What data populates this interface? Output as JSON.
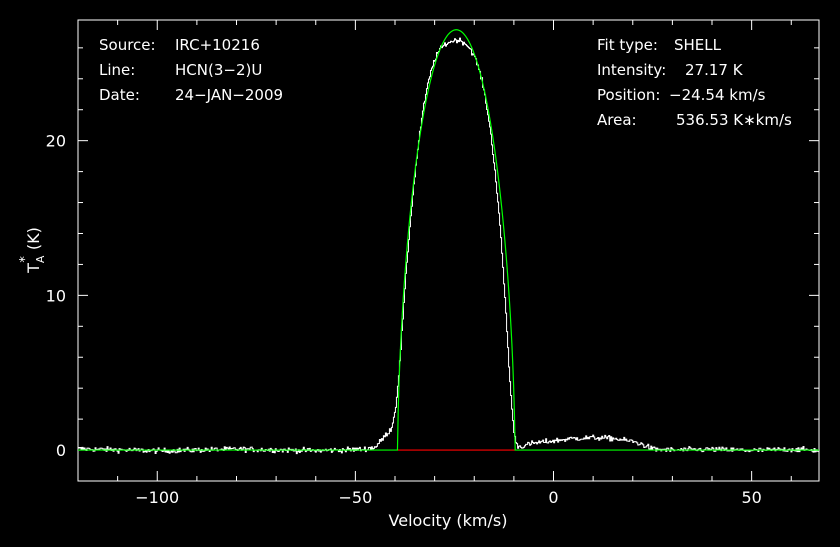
{
  "header_left": {
    "source_label": "Source:",
    "source_value": "IRC+10216",
    "line_label": "Line:",
    "line_value": "HCN(3−2)U",
    "date_label": "Date:",
    "date_value": "24−JAN−2009"
  },
  "header_right": {
    "fit_type_label": "Fit type:",
    "fit_type_value": "SHELL",
    "intensity_label": "Intensity:",
    "intensity_value": "27.17 K",
    "position_label": "Position:",
    "position_value": "−24.54 km/s",
    "area_label": "Area:",
    "area_value": "536.53 K∗km/s"
  },
  "colors": {
    "background": "#000000",
    "axes": "#ffffff",
    "spectrum": "#ffffff",
    "fit": "#00ff00",
    "baseline": "#ff0000"
  },
  "chart_data": {
    "type": "line",
    "xlabel": "Velocity (km/s)",
    "ylabel_main": "T",
    "ylabel_sub": "A",
    "ylabel_sup": "*",
    "ylabel_unit": "(K)",
    "xlim": [
      -120,
      67
    ],
    "ylim": [
      -2,
      27.8
    ],
    "x_ticks": [
      -100,
      -50,
      0,
      50
    ],
    "x_tick_labels": [
      "−100",
      "−50",
      "0",
      "50"
    ],
    "y_ticks": [
      0,
      10,
      20
    ],
    "y_tick_labels": [
      "0",
      "10",
      "20"
    ],
    "fit": {
      "center": -24.54,
      "peak": 27.17,
      "half_width": 14.8,
      "horn": 0.0
    },
    "series": [
      {
        "points": [
          [
            -120,
            0.08
          ],
          [
            -100,
            -0.05
          ],
          [
            -80,
            0.06
          ],
          [
            -60,
            -0.04
          ],
          [
            -48,
            0.05
          ],
          [
            -45,
            0.2
          ],
          [
            -43,
            0.8
          ],
          [
            -41,
            1.4
          ],
          [
            -40,
            2.6
          ],
          [
            -39,
            5.2
          ],
          [
            -38,
            9.0
          ],
          [
            -37,
            12.5
          ],
          [
            -36,
            15.5
          ],
          [
            -35,
            18.0
          ],
          [
            -34,
            20.2
          ],
          [
            -33,
            22.0
          ],
          [
            -32,
            23.4
          ],
          [
            -31,
            24.5
          ],
          [
            -30,
            25.3
          ],
          [
            -29,
            25.8
          ],
          [
            -28,
            26.1
          ],
          [
            -27,
            26.3
          ],
          [
            -26,
            26.4
          ],
          [
            -25,
            26.5
          ],
          [
            -24,
            26.5
          ],
          [
            -23,
            26.4
          ],
          [
            -22,
            26.2
          ],
          [
            -21,
            25.9
          ],
          [
            -20,
            25.4
          ],
          [
            -19,
            24.7
          ],
          [
            -18,
            23.7
          ],
          [
            -17,
            22.3
          ],
          [
            -16,
            20.6
          ],
          [
            -15,
            18.4
          ],
          [
            -14,
            15.7
          ],
          [
            -13,
            12.4
          ],
          [
            -12,
            8.4
          ],
          [
            -11,
            4.0
          ],
          [
            -10,
            0.9
          ],
          [
            -9,
            0.2
          ],
          [
            -8,
            0.25
          ],
          [
            -5,
            0.45
          ],
          [
            0,
            0.6
          ],
          [
            5,
            0.75
          ],
          [
            10,
            0.8
          ],
          [
            15,
            0.75
          ],
          [
            20,
            0.55
          ],
          [
            23,
            0.3
          ],
          [
            25,
            0.05
          ],
          [
            30,
            0.0
          ],
          [
            40,
            0.04
          ],
          [
            50,
            -0.03
          ],
          [
            60,
            0.05
          ],
          [
            67,
            -0.02
          ]
        ]
      }
    ]
  }
}
